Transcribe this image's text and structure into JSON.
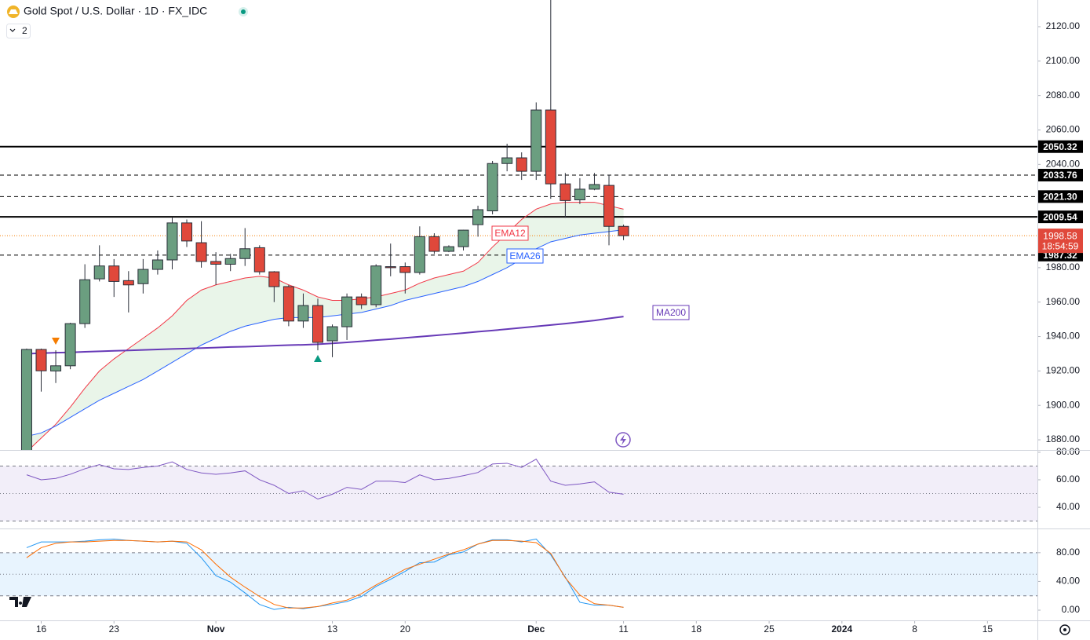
{
  "toolbar": {
    "title": "Gold Spot / U.S. Dollar · 1D · FX_IDC",
    "hidden_indicators": "2"
  },
  "chart_data": [
    {
      "type": "candlestick",
      "x": [
        0,
        1,
        2,
        3,
        4,
        5,
        6,
        7,
        8,
        9,
        10,
        11,
        12,
        13,
        14,
        15,
        16,
        17,
        18,
        19,
        20,
        21,
        22,
        23,
        24,
        25,
        26,
        27,
        28,
        29,
        30,
        31,
        32,
        33,
        34,
        35,
        36,
        37,
        38,
        39,
        40,
        41
      ],
      "open": [
        1868,
        1932.5,
        1920,
        1923,
        1947.5,
        1973.5,
        1981,
        1972.5,
        1970.7,
        1979,
        1984.5,
        2006,
        1994.5,
        1983.6,
        1982,
        1985.3,
        1991.6,
        1977.6,
        1969,
        1949,
        1958,
        1937.5,
        1945.7,
        1963,
        1958.5,
        1980.6,
        1980.6,
        1977.2,
        1998,
        1989.5,
        1992.2,
        2005,
        2013,
        2040.5,
        2043.8,
        2036,
        2071.6,
        2028.7,
        2019.4,
        2025.6,
        2027.8,
        2004
      ],
      "high": [
        1933,
        1933,
        1932,
        1948,
        1982,
        1993,
        1985,
        1978,
        1985,
        1990,
        2009,
        2008,
        2007,
        1989,
        1988,
        2003,
        1993,
        1978,
        1970,
        1965,
        1962,
        1947,
        1965,
        1965,
        1982,
        1994,
        1983,
        2004,
        2000,
        1993,
        2002,
        2016,
        2042,
        2052,
        2047,
        2076,
        2146,
        2035,
        2032,
        2035,
        2034,
        2005
      ],
      "low": [
        1866,
        1908,
        1913,
        1921,
        1945,
        1972,
        1963,
        1954,
        1965,
        1976,
        1979,
        1992,
        1980,
        1970,
        1978,
        1981,
        1976,
        1960,
        1946,
        1945,
        1932,
        1928,
        1938,
        1956,
        1957,
        1975,
        1965,
        1976,
        1988,
        1989,
        1990,
        1998,
        2011,
        2036,
        2031,
        2031,
        2020,
        2009,
        2017,
        2025,
        1993,
        1996
      ],
      "close": [
        1932.5,
        1920.1,
        1923,
        1947.5,
        1973,
        1981,
        1972,
        1970,
        1979,
        1984.5,
        2006,
        1995.5,
        1983.6,
        1982,
        1985.3,
        1991,
        1977.6,
        1969,
        1949,
        1958,
        1936.6,
        1945.7,
        1963,
        1958.5,
        1981,
        1980,
        1977.2,
        1998,
        1989.5,
        1992.2,
        2001.8,
        2013.7,
        2040.5,
        2043.8,
        2036,
        2071.6,
        2028.7,
        2019,
        2025.6,
        2028.3,
        2004,
        1998.6
      ],
      "up_color": "#6b9e80",
      "down_color": "#e0483b",
      "cloud_color": "#e9f5e9",
      "series": [
        {
          "name": "EMA12",
          "color": "#f23645",
          "values": [
            1873,
            1881,
            1889,
            1899,
            1910,
            1920,
            1927,
            1933,
            1939,
            1945,
            1952,
            1961,
            1967,
            1970,
            1972,
            1974,
            1975,
            1974,
            1970,
            1967,
            1963,
            1961,
            1961,
            1962,
            1963,
            1965,
            1967,
            1971,
            1974,
            1976,
            1978,
            1983,
            1992,
            2000,
            2008,
            2014,
            2017,
            2018,
            2018,
            2018,
            2016,
            2014
          ]
        },
        {
          "name": "EMA26",
          "color": "#2962ff",
          "values": [
            1882,
            1884,
            1888,
            1893,
            1898,
            1903,
            1907,
            1911,
            1915,
            1920,
            1925,
            1930,
            1935,
            1939,
            1943,
            1946,
            1948,
            1950,
            1951,
            1951,
            1951,
            1952,
            1953,
            1954,
            1956,
            1958,
            1961,
            1963,
            1965,
            1967,
            1969,
            1972,
            1976,
            1980,
            1985,
            1991,
            1995,
            1997,
            1999,
            2000,
            2001,
            2002
          ]
        },
        {
          "name": "MA200",
          "color": "#673ab7",
          "values": [
            1930.0,
            1930.3,
            1930.6,
            1930.8,
            1931.1,
            1931.4,
            1931.7,
            1931.9,
            1932.2,
            1932.5,
            1932.8,
            1933.0,
            1933.3,
            1933.6,
            1933.9,
            1934.1,
            1934.4,
            1934.7,
            1935.0,
            1935.2,
            1935.5,
            1936.0,
            1936.6,
            1937.2,
            1937.9,
            1938.5,
            1939.2,
            1939.9,
            1940.6,
            1941.3,
            1942.0,
            1942.8,
            1943.5,
            1944.3,
            1945.1,
            1945.9,
            1946.7,
            1947.5,
            1948.4,
            1949.3,
            1950.5,
            1951.6
          ]
        }
      ],
      "levels": [
        {
          "value": 2050.32,
          "label": "2050.32",
          "style": "solid"
        },
        {
          "value": 2033.76,
          "label": "2033.76",
          "style": "dashed"
        },
        {
          "value": 2021.3,
          "label": "2021.30",
          "style": "dashed"
        },
        {
          "value": 2009.54,
          "label": "2009.54",
          "style": "solid"
        },
        {
          "value": 1987.32,
          "label": "1987.32",
          "style": "dashed"
        }
      ],
      "last_price": {
        "value": 1998.58,
        "label": "1998.58",
        "countdown": "18:54:59"
      },
      "xlim": [
        -1.83,
        69.43
      ],
      "xticks": [
        {
          "value": 1,
          "label": "16"
        },
        {
          "value": 6,
          "label": "23"
        },
        {
          "value": 13,
          "label": "Nov"
        },
        {
          "value": 21,
          "label": "13"
        },
        {
          "value": 26,
          "label": "20"
        },
        {
          "value": 35,
          "label": "Dec"
        },
        {
          "value": 41,
          "label": "11"
        },
        {
          "value": 46,
          "label": "18"
        },
        {
          "value": 51,
          "label": "25"
        },
        {
          "value": 56,
          "label": "2024"
        },
        {
          "value": 61,
          "label": "8"
        },
        {
          "value": 66,
          "label": "15"
        }
      ],
      "ylim": [
        1874.1,
        2135.5
      ],
      "yticks": [
        {
          "value": 1880,
          "label": "1880.00"
        },
        {
          "value": 1900,
          "label": "1900.00"
        },
        {
          "value": 1920,
          "label": "1920.00"
        },
        {
          "value": 1940,
          "label": "1940.00"
        },
        {
          "value": 1960,
          "label": "1960.00"
        },
        {
          "value": 1980,
          "label": "1980.00"
        },
        {
          "value": 2000,
          "label": "2000.00"
        },
        {
          "value": 2020,
          "label": "2020.00"
        },
        {
          "value": 2040,
          "label": "2040.00"
        },
        {
          "value": 2060,
          "label": "2060.00"
        },
        {
          "value": 2080,
          "label": "2080.00"
        },
        {
          "value": 2100,
          "label": "2100.00"
        },
        {
          "value": 2120,
          "label": "2120.00"
        }
      ]
    },
    {
      "type": "line",
      "x": [
        0,
        1,
        2,
        3,
        4,
        5,
        6,
        7,
        8,
        9,
        10,
        11,
        12,
        13,
        14,
        15,
        16,
        17,
        18,
        19,
        20,
        21,
        22,
        23,
        24,
        25,
        26,
        27,
        28,
        29,
        30,
        31,
        32,
        33,
        34,
        35,
        36,
        37,
        38,
        39,
        40,
        41
      ],
      "series": [
        {
          "color": "#7e57c2",
          "values": [
            63.6,
            60,
            61,
            64,
            68,
            71,
            68,
            67.5,
            69,
            70,
            73,
            67.5,
            65,
            64,
            65,
            66.5,
            60,
            56,
            50,
            52,
            46,
            49.5,
            54.5,
            53,
            59,
            59,
            58,
            63.6,
            60,
            61,
            63,
            65.3,
            71.5,
            72,
            69,
            75,
            59,
            56,
            57,
            58.5,
            51,
            49.5
          ]
        }
      ],
      "band": [
        30,
        70
      ],
      "midline": 50,
      "band_color": "#7e57c2",
      "ylim": [
        24.6,
        81.1
      ],
      "yticks": [
        {
          "value": 40,
          "label": "40.00"
        },
        {
          "value": 60,
          "label": "60.00"
        },
        {
          "value": 80,
          "label": "80.00"
        }
      ]
    },
    {
      "type": "line",
      "x": [
        0,
        1,
        2,
        3,
        4,
        5,
        6,
        7,
        8,
        9,
        10,
        11,
        12,
        13,
        14,
        15,
        16,
        17,
        18,
        19,
        20,
        21,
        22,
        23,
        24,
        25,
        26,
        27,
        28,
        29,
        30,
        31,
        32,
        33,
        34,
        35,
        36,
        37,
        38,
        39,
        40,
        41
      ],
      "series": [
        {
          "color": "#2196f3",
          "values": [
            87,
            95,
            95,
            95,
            96,
            98,
            99,
            97,
            96,
            95,
            96,
            93,
            73,
            48,
            39,
            24,
            8,
            1,
            4,
            2,
            5,
            8,
            12,
            19,
            33,
            43,
            54,
            66,
            67,
            77,
            81,
            92,
            98,
            98,
            95,
            99,
            77,
            46,
            11,
            7,
            7,
            4
          ]
        },
        {
          "color": "#ff6d00",
          "values": [
            73,
            87,
            93,
            95,
            95,
            96,
            97,
            97,
            96,
            95,
            96,
            95,
            84,
            64,
            46,
            32,
            19,
            8,
            3,
            3,
            5,
            10,
            14,
            23,
            35,
            46,
            57,
            64,
            71,
            78,
            84,
            92,
            97,
            97,
            96,
            94,
            79,
            45,
            21,
            9,
            7,
            4
          ]
        }
      ],
      "band": [
        20,
        80
      ],
      "midline": 50,
      "band_color": "#2196f3",
      "ylim": [
        -14.2,
        111.5
      ],
      "yticks": [
        {
          "value": 0,
          "label": "0.00"
        },
        {
          "value": 40,
          "label": "40.00"
        },
        {
          "value": 80,
          "label": "80.00"
        }
      ]
    }
  ]
}
